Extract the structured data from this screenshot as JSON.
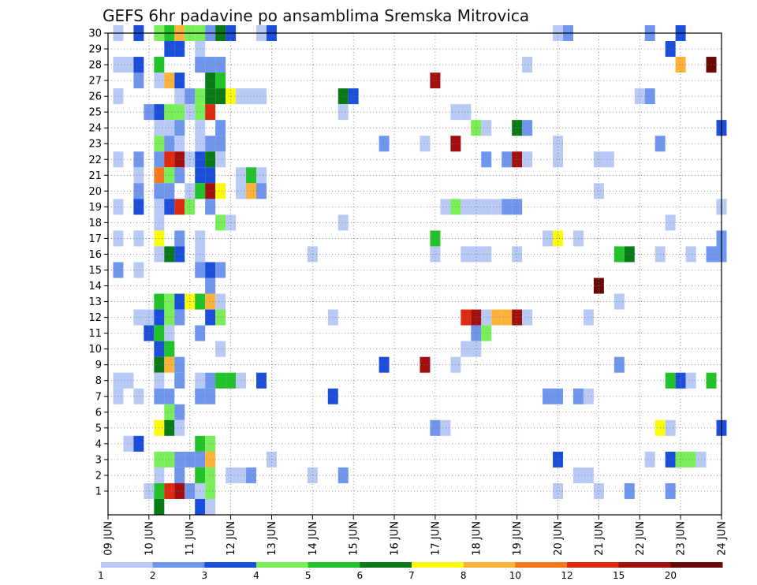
{
  "chart_data": {
    "type": "heatmap",
    "title": "GEFS 6hr padavine po ansamblima Sremska Mitrovica",
    "x_tick_labels": [
      "09 JUN",
      "10 JUN",
      "11 JUN",
      "12 JUN",
      "13 JUN",
      "14 JUN",
      "15 JUN",
      "16 JUN",
      "17 JUN",
      "18 JUN",
      "19 JUN",
      "20 JUN",
      "21 JUN",
      "22 JUN",
      "23 JUN",
      "24 JUN"
    ],
    "y_tick_labels": [
      "1",
      "2",
      "3",
      "4",
      "5",
      "6",
      "7",
      "8",
      "9",
      "10",
      "11",
      "12",
      "13",
      "14",
      "15",
      "16",
      "17",
      "18",
      "19",
      "20",
      "21",
      "22",
      "23",
      "24",
      "25",
      "26",
      "27",
      "28",
      "29",
      "30"
    ],
    "x_range_days": [
      9,
      24
    ],
    "y_range": [
      0,
      30
    ],
    "grid": true,
    "colorbar": {
      "labels": [
        "1",
        "2",
        "3",
        "4",
        "5",
        "6",
        "7",
        "8",
        "10",
        "12",
        "15",
        "20"
      ],
      "colors": [
        "#b9c9f5",
        "#6f95ec",
        "#1c4fd9",
        "#7aed5a",
        "#22c22a",
        "#0a7a18",
        "#fbfb10",
        "#fbb33a",
        "#f5791c",
        "#dc2b10",
        "#a10f0f",
        "#6a0707"
      ]
    },
    "cells": [
      [
        9.25,
        30,
        0
      ],
      [
        9.75,
        30,
        2
      ],
      [
        10.25,
        30,
        3
      ],
      [
        10.5,
        30,
        4
      ],
      [
        10.75,
        30,
        7
      ],
      [
        11,
        30,
        3
      ],
      [
        11.25,
        30,
        3
      ],
      [
        11.5,
        30,
        1
      ],
      [
        11.75,
        30,
        5
      ],
      [
        12,
        30,
        2
      ],
      [
        12.75,
        30,
        0
      ],
      [
        13,
        30,
        2
      ],
      [
        20,
        30,
        0
      ],
      [
        20.25,
        30,
        1
      ],
      [
        22.25,
        30,
        1
      ],
      [
        23,
        30,
        2
      ],
      [
        10.5,
        29,
        2
      ],
      [
        10.75,
        29,
        2
      ],
      [
        11.25,
        29,
        0
      ],
      [
        22.75,
        29,
        2
      ],
      [
        9.25,
        28,
        0
      ],
      [
        9.5,
        28,
        0
      ],
      [
        9.75,
        28,
        2
      ],
      [
        10.25,
        28,
        4
      ],
      [
        11.25,
        28,
        1
      ],
      [
        11.5,
        28,
        1
      ],
      [
        11.75,
        28,
        1
      ],
      [
        19.25,
        28,
        0
      ],
      [
        23,
        28,
        7
      ],
      [
        23.75,
        28,
        11
      ],
      [
        9.75,
        27,
        1
      ],
      [
        10.25,
        27,
        0
      ],
      [
        10.5,
        27,
        7
      ],
      [
        10.75,
        27,
        2
      ],
      [
        11.5,
        27,
        5
      ],
      [
        11.75,
        27,
        4
      ],
      [
        17,
        27,
        10
      ],
      [
        9.25,
        26,
        0
      ],
      [
        10.75,
        26,
        0
      ],
      [
        11,
        26,
        1
      ],
      [
        11.25,
        26,
        3
      ],
      [
        11.5,
        26,
        5
      ],
      [
        11.75,
        26,
        5
      ],
      [
        12,
        26,
        6
      ],
      [
        12.25,
        26,
        0
      ],
      [
        12.5,
        26,
        0
      ],
      [
        12.75,
        26,
        0
      ],
      [
        14.75,
        26,
        5
      ],
      [
        15,
        26,
        2
      ],
      [
        22,
        26,
        0
      ],
      [
        22.25,
        26,
        1
      ],
      [
        10,
        25,
        1
      ],
      [
        10.25,
        25,
        2
      ],
      [
        10.5,
        25,
        3
      ],
      [
        10.75,
        25,
        3
      ],
      [
        11,
        25,
        0
      ],
      [
        11.25,
        25,
        3
      ],
      [
        11.5,
        25,
        9
      ],
      [
        14.75,
        25,
        0
      ],
      [
        17.5,
        25,
        0
      ],
      [
        17.75,
        25,
        0
      ],
      [
        10.25,
        24,
        0
      ],
      [
        10.5,
        24,
        0
      ],
      [
        10.75,
        24,
        1
      ],
      [
        11.25,
        24,
        0
      ],
      [
        11.75,
        24,
        1
      ],
      [
        18,
        24,
        3
      ],
      [
        18.25,
        24,
        0
      ],
      [
        19,
        24,
        5
      ],
      [
        19.25,
        24,
        1
      ],
      [
        24,
        24,
        2
      ],
      [
        10.25,
        23,
        3
      ],
      [
        10.5,
        23,
        1
      ],
      [
        10.75,
        23,
        0
      ],
      [
        11.25,
        23,
        0
      ],
      [
        11.5,
        23,
        1
      ],
      [
        11.75,
        23,
        1
      ],
      [
        15.75,
        23,
        1
      ],
      [
        16.75,
        23,
        0
      ],
      [
        17.5,
        23,
        10
      ],
      [
        20,
        23,
        0
      ],
      [
        22.5,
        23,
        1
      ],
      [
        9.25,
        22,
        0
      ],
      [
        9.75,
        22,
        1
      ],
      [
        10.25,
        22,
        1
      ],
      [
        10.5,
        22,
        9
      ],
      [
        10.75,
        22,
        10
      ],
      [
        11,
        22,
        0
      ],
      [
        11.25,
        22,
        2
      ],
      [
        11.5,
        22,
        5
      ],
      [
        11.75,
        22,
        0
      ],
      [
        18.25,
        22,
        1
      ],
      [
        18.75,
        22,
        1
      ],
      [
        19,
        22,
        10
      ],
      [
        19.25,
        22,
        0
      ],
      [
        20,
        22,
        0
      ],
      [
        21,
        22,
        0
      ],
      [
        21.25,
        22,
        0
      ],
      [
        9.75,
        21,
        0
      ],
      [
        10.25,
        21,
        8
      ],
      [
        10.5,
        21,
        3
      ],
      [
        10.75,
        21,
        1
      ],
      [
        11.25,
        21,
        2
      ],
      [
        11.5,
        21,
        2
      ],
      [
        12.25,
        21,
        0
      ],
      [
        12.5,
        21,
        4
      ],
      [
        12.75,
        21,
        0
      ],
      [
        9.75,
        20,
        1
      ],
      [
        10.25,
        20,
        1
      ],
      [
        10.5,
        20,
        1
      ],
      [
        11,
        20,
        0
      ],
      [
        11.25,
        20,
        4
      ],
      [
        11.5,
        20,
        10
      ],
      [
        11.75,
        20,
        6
      ],
      [
        12.25,
        20,
        0
      ],
      [
        12.5,
        20,
        7
      ],
      [
        12.75,
        20,
        1
      ],
      [
        21,
        20,
        0
      ],
      [
        9.25,
        19,
        0
      ],
      [
        9.75,
        19,
        2
      ],
      [
        10.25,
        19,
        0
      ],
      [
        10.5,
        19,
        2
      ],
      [
        10.75,
        19,
        9
      ],
      [
        11,
        19,
        3
      ],
      [
        11.5,
        19,
        1
      ],
      [
        17.25,
        19,
        0
      ],
      [
        17.5,
        19,
        3
      ],
      [
        17.75,
        19,
        0
      ],
      [
        18,
        19,
        0
      ],
      [
        18.25,
        19,
        0
      ],
      [
        18.5,
        19,
        0
      ],
      [
        18.75,
        19,
        1
      ],
      [
        19,
        19,
        1
      ],
      [
        24,
        19,
        0
      ],
      [
        10.25,
        18,
        0
      ],
      [
        11.75,
        18,
        3
      ],
      [
        12,
        18,
        0
      ],
      [
        14.75,
        18,
        0
      ],
      [
        22.75,
        18,
        0
      ],
      [
        9.25,
        17,
        0
      ],
      [
        9.75,
        17,
        0
      ],
      [
        10.25,
        17,
        6
      ],
      [
        10.75,
        17,
        1
      ],
      [
        11.25,
        17,
        0
      ],
      [
        17,
        17,
        4
      ],
      [
        19.75,
        17,
        0
      ],
      [
        20,
        17,
        6
      ],
      [
        20.5,
        17,
        0
      ],
      [
        24,
        17,
        1
      ],
      [
        10.25,
        16,
        0
      ],
      [
        10.5,
        16,
        5
      ],
      [
        10.75,
        16,
        2
      ],
      [
        11.25,
        16,
        0
      ],
      [
        14,
        16,
        0
      ],
      [
        17,
        16,
        0
      ],
      [
        17.75,
        16,
        0
      ],
      [
        18,
        16,
        0
      ],
      [
        18.25,
        16,
        0
      ],
      [
        19,
        16,
        0
      ],
      [
        21.5,
        16,
        4
      ],
      [
        21.75,
        16,
        5
      ],
      [
        22.5,
        16,
        0
      ],
      [
        23.25,
        16,
        0
      ],
      [
        23.75,
        16,
        1
      ],
      [
        24,
        16,
        1
      ],
      [
        9.25,
        15,
        1
      ],
      [
        9.75,
        15,
        0
      ],
      [
        11.25,
        15,
        1
      ],
      [
        11.5,
        15,
        2
      ],
      [
        11.75,
        15,
        1
      ],
      [
        11.5,
        14,
        1
      ],
      [
        21,
        14,
        11
      ],
      [
        10.25,
        13,
        4
      ],
      [
        10.5,
        13,
        3
      ],
      [
        10.75,
        13,
        2
      ],
      [
        11,
        13,
        6
      ],
      [
        11.25,
        13,
        4
      ],
      [
        11.5,
        13,
        7
      ],
      [
        11.75,
        13,
        0
      ],
      [
        21.5,
        13,
        0
      ],
      [
        9.75,
        12,
        0
      ],
      [
        10,
        12,
        0
      ],
      [
        10.25,
        12,
        2
      ],
      [
        10.5,
        12,
        3
      ],
      [
        10.75,
        12,
        1
      ],
      [
        11.5,
        12,
        2
      ],
      [
        11.75,
        12,
        3
      ],
      [
        14.5,
        12,
        0
      ],
      [
        17.75,
        12,
        9
      ],
      [
        18,
        12,
        10
      ],
      [
        18.25,
        12,
        0
      ],
      [
        18.5,
        12,
        7
      ],
      [
        18.75,
        12,
        7
      ],
      [
        19,
        12,
        10
      ],
      [
        19.25,
        12,
        0
      ],
      [
        20.75,
        12,
        0
      ],
      [
        10,
        11,
        2
      ],
      [
        10.25,
        11,
        4
      ],
      [
        10.5,
        11,
        0
      ],
      [
        11.25,
        11,
        1
      ],
      [
        18,
        11,
        1
      ],
      [
        18.25,
        11,
        3
      ],
      [
        10.25,
        10,
        2
      ],
      [
        10.5,
        10,
        4
      ],
      [
        11.75,
        10,
        0
      ],
      [
        17.75,
        10,
        0
      ],
      [
        18,
        10,
        0
      ],
      [
        10.25,
        9,
        5
      ],
      [
        10.5,
        9,
        7
      ],
      [
        10.75,
        9,
        1
      ],
      [
        15.75,
        9,
        2
      ],
      [
        16.75,
        9,
        10
      ],
      [
        17.5,
        9,
        0
      ],
      [
        21.5,
        9,
        1
      ],
      [
        9.25,
        8,
        0
      ],
      [
        9.5,
        8,
        0
      ],
      [
        10.25,
        8,
        0
      ],
      [
        10.75,
        8,
        1
      ],
      [
        11.25,
        8,
        0
      ],
      [
        11.5,
        8,
        1
      ],
      [
        11.75,
        8,
        4
      ],
      [
        12,
        8,
        4
      ],
      [
        12.25,
        8,
        0
      ],
      [
        12.75,
        8,
        2
      ],
      [
        22.75,
        8,
        4
      ],
      [
        23,
        8,
        2
      ],
      [
        23.25,
        8,
        0
      ],
      [
        23.75,
        8,
        4
      ],
      [
        9.25,
        7,
        0
      ],
      [
        9.75,
        7,
        0
      ],
      [
        10.25,
        7,
        1
      ],
      [
        10.5,
        7,
        1
      ],
      [
        11.25,
        7,
        1
      ],
      [
        11.5,
        7,
        1
      ],
      [
        14.5,
        7,
        2
      ],
      [
        19.75,
        7,
        1
      ],
      [
        20,
        7,
        1
      ],
      [
        20.5,
        7,
        1
      ],
      [
        20.75,
        7,
        0
      ],
      [
        10.5,
        6,
        3
      ],
      [
        10.75,
        6,
        1
      ],
      [
        10.25,
        5,
        6
      ],
      [
        10.5,
        5,
        5
      ],
      [
        10.75,
        5,
        0
      ],
      [
        17,
        5,
        1
      ],
      [
        17.25,
        5,
        0
      ],
      [
        22.5,
        5,
        6
      ],
      [
        22.75,
        5,
        0
      ],
      [
        24,
        5,
        2
      ],
      [
        9.5,
        4,
        0
      ],
      [
        9.75,
        4,
        2
      ],
      [
        11.25,
        4,
        4
      ],
      [
        11.5,
        4,
        3
      ],
      [
        10.25,
        3,
        3
      ],
      [
        10.5,
        3,
        3
      ],
      [
        10.75,
        3,
        1
      ],
      [
        11,
        3,
        1
      ],
      [
        11.25,
        3,
        1
      ],
      [
        11.5,
        3,
        7
      ],
      [
        13,
        3,
        0
      ],
      [
        20,
        3,
        2
      ],
      [
        22.25,
        3,
        0
      ],
      [
        22.75,
        3,
        2
      ],
      [
        23,
        3,
        3
      ],
      [
        23.25,
        3,
        3
      ],
      [
        23.5,
        3,
        0
      ],
      [
        10.25,
        2,
        0
      ],
      [
        10.75,
        2,
        1
      ],
      [
        11.25,
        2,
        4
      ],
      [
        11.5,
        2,
        3
      ],
      [
        12,
        2,
        0
      ],
      [
        12.25,
        2,
        0
      ],
      [
        12.5,
        2,
        1
      ],
      [
        14,
        2,
        0
      ],
      [
        14.75,
        2,
        1
      ],
      [
        20.5,
        2,
        0
      ],
      [
        20.75,
        2,
        0
      ],
      [
        10,
        1,
        0
      ],
      [
        10.25,
        1,
        4
      ],
      [
        10.5,
        1,
        9
      ],
      [
        10.75,
        1,
        10
      ],
      [
        11,
        1,
        1
      ],
      [
        11.25,
        1,
        0
      ],
      [
        11.5,
        1,
        3
      ],
      [
        20,
        1,
        0
      ],
      [
        21,
        1,
        0
      ],
      [
        21.75,
        1,
        1
      ],
      [
        22.75,
        1,
        1
      ],
      [
        10.25,
        0,
        5
      ],
      [
        11.25,
        0,
        2
      ],
      [
        11.5,
        0,
        0
      ]
    ]
  }
}
